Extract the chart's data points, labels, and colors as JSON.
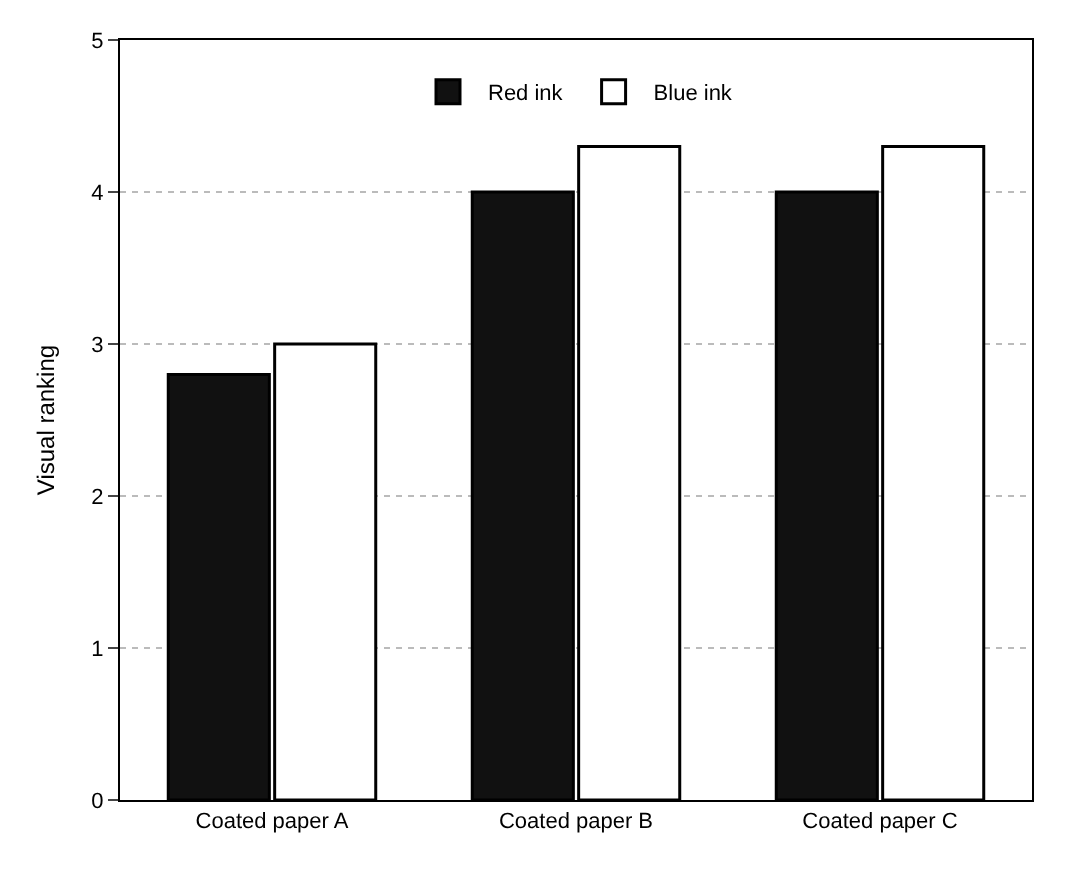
{
  "chart_data": {
    "type": "bar",
    "ylabel": "Visual ranking",
    "categories": [
      "Coated paper A",
      "Coated paper B",
      "Coated paper C"
    ],
    "series": [
      {
        "name": "Red ink",
        "color": "#111111",
        "values": [
          2.8,
          4.0,
          4.0
        ]
      },
      {
        "name": "Blue ink",
        "color": "#ffffff",
        "values": [
          3.0,
          4.3,
          4.3
        ]
      }
    ],
    "ylim": [
      0,
      5
    ],
    "yticks": [
      0,
      1,
      2,
      3,
      4,
      5
    ],
    "grid": "y",
    "legend": "top"
  }
}
